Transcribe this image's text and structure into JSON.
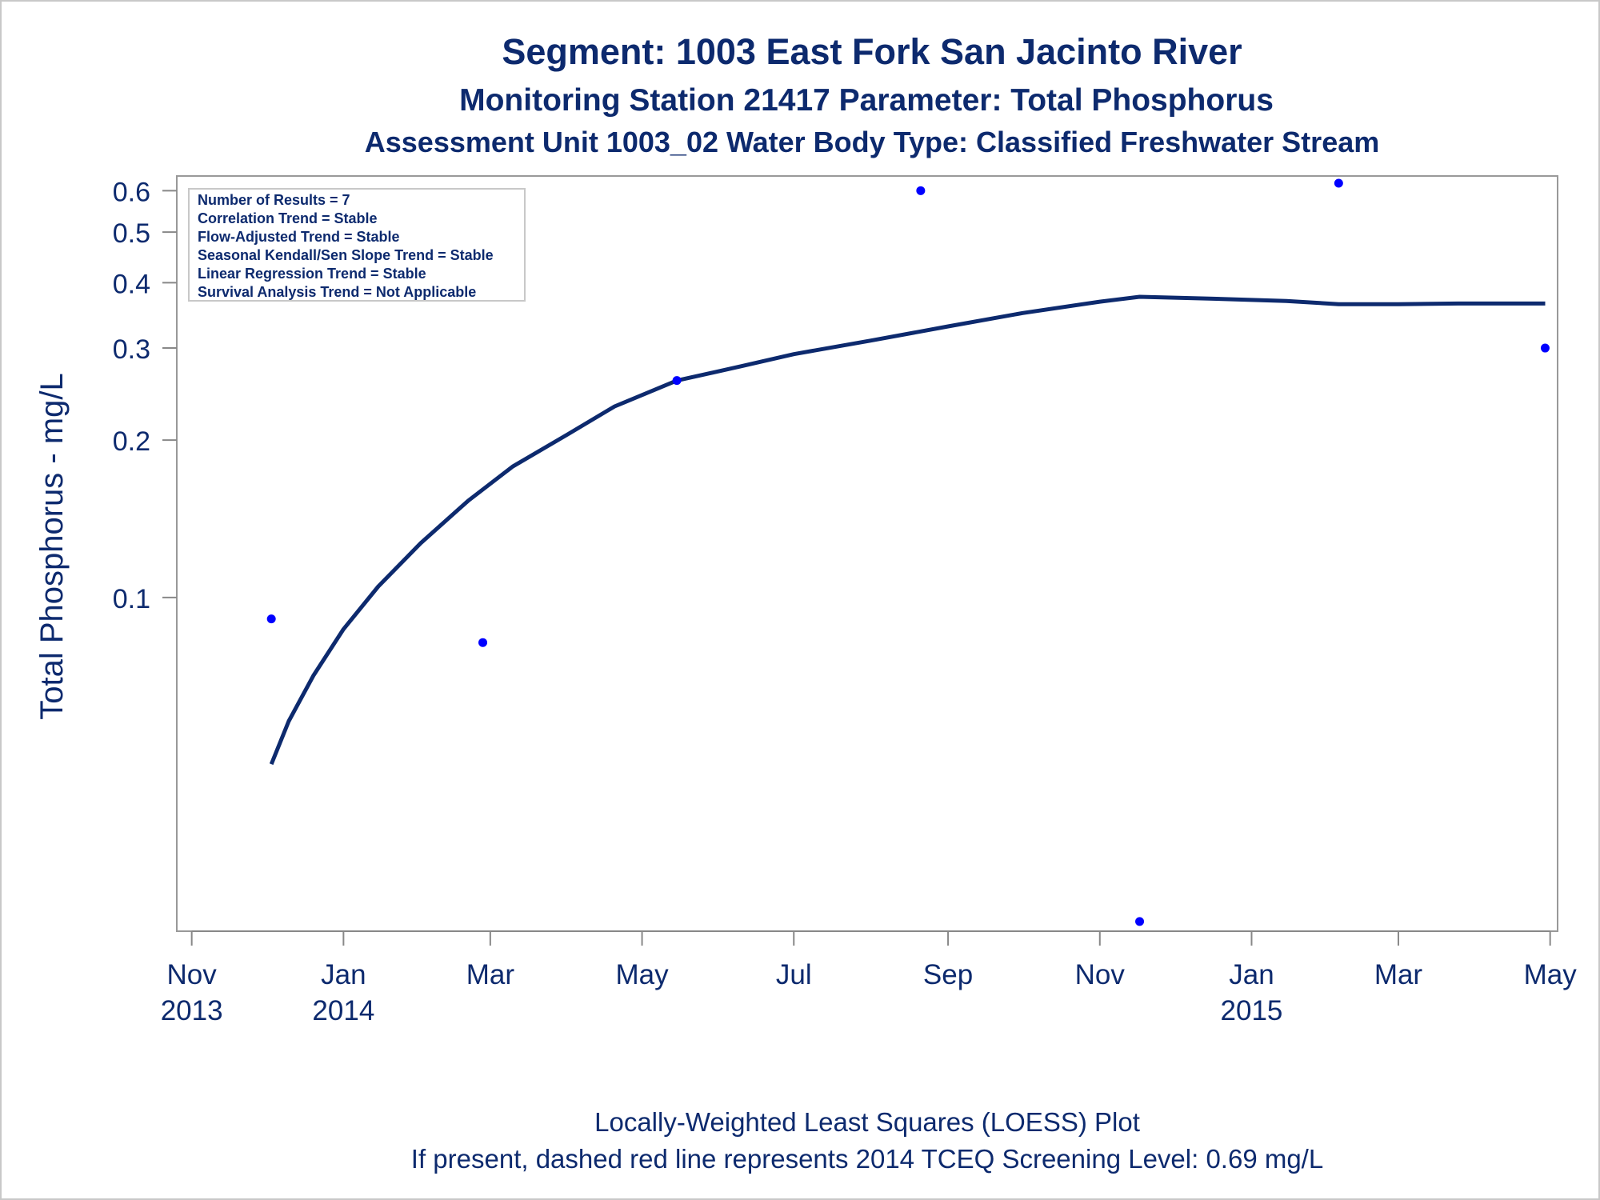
{
  "titles": {
    "line1": "Segment: 1003  East Fork San Jacinto River",
    "line2": "Monitoring Station 21417 Parameter: Total Phosphorus",
    "line3": "Assessment Unit 1003_02   Water Body Type: Classified Freshwater Stream"
  },
  "footnotes": {
    "line1": "Locally-Weighted Least Squares (LOESS) Plot",
    "line2": "If present, dashed red line represents 2014 TCEQ Screening Level: 0.69 mg/L"
  },
  "inset": [
    "Number of Results = 7",
    "Correlation Trend = Stable",
    "Flow-Adjusted Trend = Stable",
    "Seasonal Kendall/Sen Slope Trend = Stable",
    "Linear Regression Trend = Stable",
    "Survival Analysis Trend = Not Applicable"
  ],
  "colors": {
    "text": "#0d2a6e",
    "marker": "#0000ff",
    "loess": "#0d2a6e",
    "axis": "#888888"
  },
  "chart_data": {
    "type": "scatter",
    "ylabel": "Total Phosphorus - mg/L",
    "yscale": "log",
    "ylim": [
      0.023,
      0.64
    ],
    "xlim": [
      "2013-10-26",
      "2015-05-04"
    ],
    "yticks": [
      {
        "value": 0.1,
        "label": "0.1"
      },
      {
        "value": 0.2,
        "label": "0.2"
      },
      {
        "value": 0.3,
        "label": "0.3"
      },
      {
        "value": 0.4,
        "label": "0.4"
      },
      {
        "value": 0.5,
        "label": "0.5"
      },
      {
        "value": 0.6,
        "label": "0.6"
      }
    ],
    "xticks": [
      {
        "date": "2013-11-01",
        "month": "Nov",
        "year": "2013"
      },
      {
        "date": "2014-01-01",
        "month": "Jan",
        "year": "2014"
      },
      {
        "date": "2014-03-01",
        "month": "Mar",
        "year": ""
      },
      {
        "date": "2014-05-01",
        "month": "May",
        "year": ""
      },
      {
        "date": "2014-07-01",
        "month": "Jul",
        "year": ""
      },
      {
        "date": "2014-09-01",
        "month": "Sep",
        "year": ""
      },
      {
        "date": "2014-11-01",
        "month": "Nov",
        "year": ""
      },
      {
        "date": "2015-01-01",
        "month": "Jan",
        "year": "2015"
      },
      {
        "date": "2015-03-01",
        "month": "Mar",
        "year": ""
      },
      {
        "date": "2015-05-01",
        "month": "May",
        "year": ""
      }
    ],
    "points": [
      {
        "date": "2013-12-03",
        "value": 0.091
      },
      {
        "date": "2014-02-26",
        "value": 0.082
      },
      {
        "date": "2014-05-15",
        "value": 0.26
      },
      {
        "date": "2014-08-21",
        "value": 0.6
      },
      {
        "date": "2014-11-17",
        "value": 0.024
      },
      {
        "date": "2015-02-05",
        "value": 0.62
      },
      {
        "date": "2015-04-29",
        "value": 0.3
      }
    ],
    "loess": [
      {
        "date": "2013-12-03",
        "value": 0.048
      },
      {
        "date": "2013-12-10",
        "value": 0.058
      },
      {
        "date": "2013-12-20",
        "value": 0.071
      },
      {
        "date": "2014-01-01",
        "value": 0.087
      },
      {
        "date": "2014-01-15",
        "value": 0.105
      },
      {
        "date": "2014-02-01",
        "value": 0.127
      },
      {
        "date": "2014-02-20",
        "value": 0.153
      },
      {
        "date": "2014-03-10",
        "value": 0.178
      },
      {
        "date": "2014-04-01",
        "value": 0.205
      },
      {
        "date": "2014-04-20",
        "value": 0.232
      },
      {
        "date": "2014-05-15",
        "value": 0.26
      },
      {
        "date": "2014-06-10",
        "value": 0.277
      },
      {
        "date": "2014-07-01",
        "value": 0.292
      },
      {
        "date": "2014-08-01",
        "value": 0.31
      },
      {
        "date": "2014-09-01",
        "value": 0.33
      },
      {
        "date": "2014-10-01",
        "value": 0.35
      },
      {
        "date": "2014-11-01",
        "value": 0.368
      },
      {
        "date": "2014-11-17",
        "value": 0.376
      },
      {
        "date": "2014-12-15",
        "value": 0.373
      },
      {
        "date": "2015-01-15",
        "value": 0.369
      },
      {
        "date": "2015-02-05",
        "value": 0.364
      },
      {
        "date": "2015-03-01",
        "value": 0.364
      },
      {
        "date": "2015-03-25",
        "value": 0.365
      },
      {
        "date": "2015-04-29",
        "value": 0.365
      }
    ]
  }
}
